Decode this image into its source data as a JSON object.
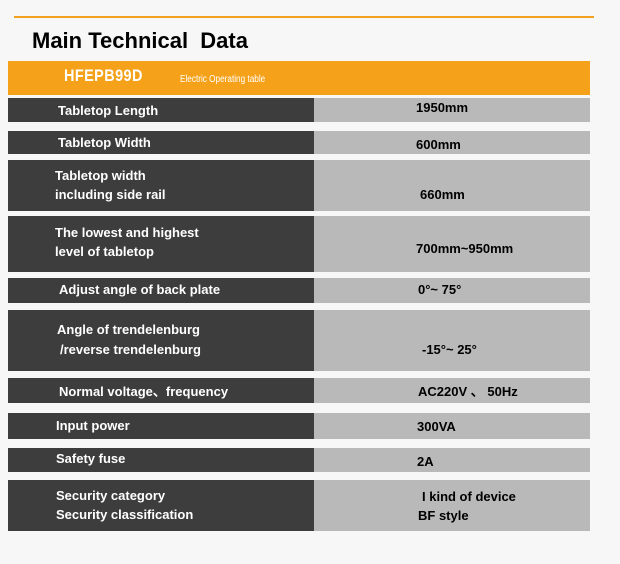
{
  "title": "Main Technical  Data",
  "model": {
    "name": "HFEPB99D",
    "description": "Electric Operating table"
  },
  "specs": [
    {
      "label": [
        "Tabletop Length"
      ],
      "value": [
        "1950mm"
      ]
    },
    {
      "label": [
        "Tabletop Width"
      ],
      "value": [
        "600mm"
      ]
    },
    {
      "label": [
        "Tabletop width",
        "including side rail"
      ],
      "value": [
        "660mm"
      ]
    },
    {
      "label": [
        "The lowest and highest",
        "level of tabletop"
      ],
      "value": [
        "700mm~950mm"
      ]
    },
    {
      "label": [
        "Adjust angle of back plate"
      ],
      "value": [
        "0°~ 75°"
      ]
    },
    {
      "label": [
        "Angle of trendelenburg",
        "/reverse trendelenburg"
      ],
      "value": [
        "-15°~ 25°"
      ]
    },
    {
      "label": [
        "Normal voltage、frequency"
      ],
      "value": [
        "AC220V 、 50Hz"
      ]
    },
    {
      "label": [
        "Input power"
      ],
      "value": [
        "300VA"
      ]
    },
    {
      "label": [
        "Safety fuse"
      ],
      "value": [
        "2A"
      ]
    },
    {
      "label": [
        "Security category",
        "Security classification"
      ],
      "value": [
        "I kind of device",
        "BF style"
      ]
    }
  ],
  "colors": {
    "accent": "#f5a21a",
    "label_background": "#3d3d3d",
    "value_background": "#b9b9b9"
  }
}
